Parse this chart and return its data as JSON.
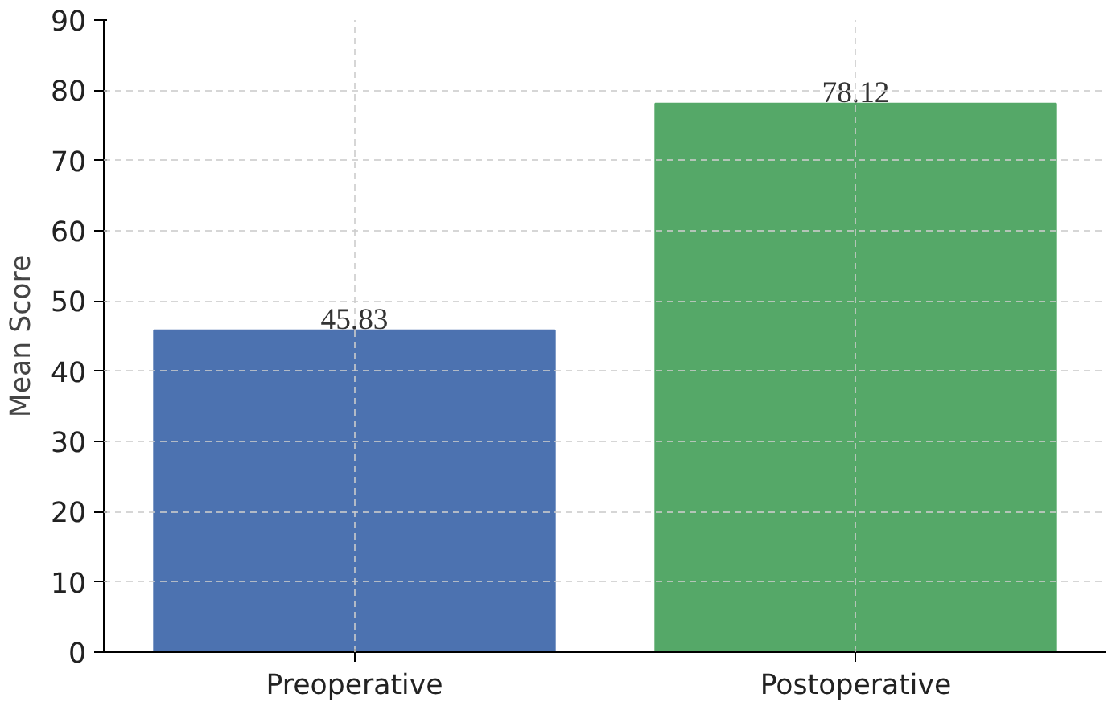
{
  "chart_data": {
    "type": "bar",
    "ylabel": "Mean Score",
    "categories": [
      "Preoperative",
      "Postoperative"
    ],
    "values": [
      45.83,
      78.12
    ],
    "colors": [
      "#4c72b0",
      "#55a868"
    ],
    "ylim": [
      0,
      90
    ],
    "yticks": [
      0,
      10,
      20,
      30,
      40,
      50,
      60,
      70,
      80,
      90
    ],
    "grid": true,
    "data_labels": true
  }
}
